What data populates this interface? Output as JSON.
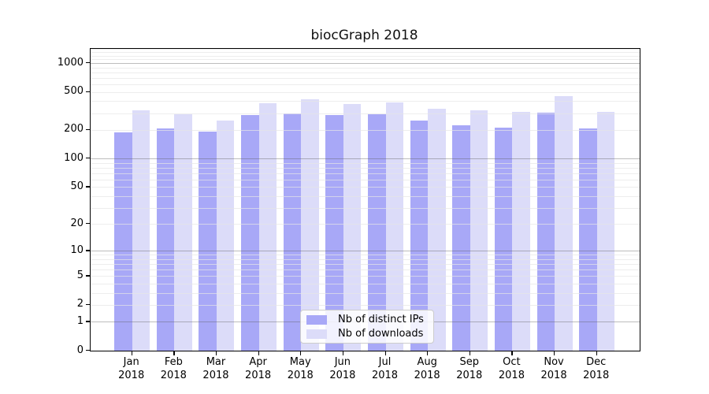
{
  "title": "biocGraph 2018",
  "chart_data": {
    "type": "bar",
    "title": "biocGraph 2018",
    "year": "2018",
    "categories": [
      "Jan",
      "Feb",
      "Mar",
      "Apr",
      "May",
      "Jun",
      "Jul",
      "Aug",
      "Sep",
      "Oct",
      "Nov",
      "Dec"
    ],
    "series": [
      {
        "name": "Nb of distinct IPs",
        "color": "#a8a8f7",
        "values": [
          190,
          208,
          192,
          285,
          297,
          286,
          290,
          252,
          224,
          211,
          304,
          208
        ]
      },
      {
        "name": "Nb of downloads",
        "color": "#dcdcf9",
        "values": [
          320,
          290,
          250,
          380,
          418,
          375,
          387,
          334,
          319,
          308,
          451,
          310
        ]
      }
    ],
    "yscale": "log10(1+x)",
    "ylim": [
      0,
      1400
    ],
    "yticks": [
      0,
      1,
      2,
      5,
      10,
      20,
      50,
      100,
      200,
      500,
      1000
    ],
    "grid": "horizontal",
    "grid_major_values": [
      1,
      10,
      100,
      1000
    ],
    "grid_minor_values": [
      2,
      3,
      4,
      5,
      6,
      7,
      8,
      9,
      20,
      30,
      40,
      50,
      60,
      70,
      80,
      90,
      200,
      300,
      400,
      500,
      600,
      700,
      800,
      900,
      1100,
      1200,
      1300,
      1400
    ],
    "legend_position": "lower center",
    "colors": {
      "axis": "#000000",
      "background": "#ffffff",
      "grid_major": "#b3b3b3",
      "grid_minor": "#ededed"
    }
  },
  "legend": {
    "items": [
      {
        "label": "Nb of distinct IPs",
        "color": "#a8a8f7"
      },
      {
        "label": "Nb of downloads",
        "color": "#dcdcf9"
      }
    ]
  }
}
